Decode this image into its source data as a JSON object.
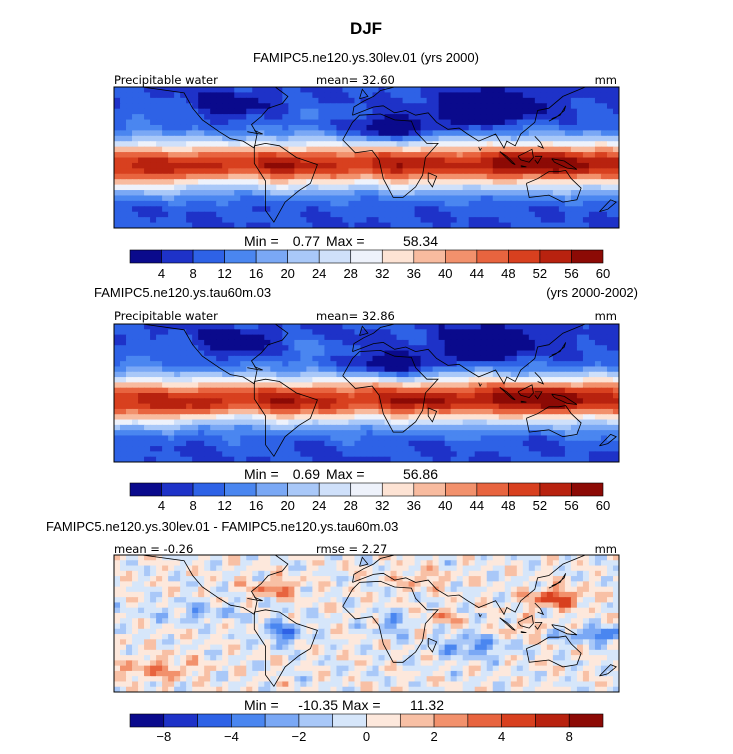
{
  "title": "DJF",
  "chart_data": [
    {
      "type": "heatmap",
      "case": "FAMIPC5.ne120.ys.30lev.01 (yrs 2000)",
      "years": "",
      "variable": "Precipitable water",
      "units": "mm",
      "mean_text": "mean=  32.60",
      "rmse_text": "",
      "min_label": "Min = ",
      "min_value": "0.77",
      "max_label": "Max = ",
      "max_value": "58.34",
      "levels": [
        "4",
        "8",
        "12",
        "16",
        "20",
        "24",
        "28",
        "32",
        "36",
        "40",
        "44",
        "48",
        "52",
        "56",
        "60"
      ],
      "colors": [
        "#0a0a8c",
        "#1e32c8",
        "#2e62e6",
        "#4a86f0",
        "#7aa8f5",
        "#a9c8f8",
        "#cfe0fa",
        "#eef2fb",
        "#fde3d4",
        "#f8bb9f",
        "#f2916c",
        "#e8643f",
        "#d8401f",
        "#b8220f",
        "#8c0a05"
      ],
      "field": "pw1"
    },
    {
      "type": "heatmap",
      "case": "FAMIPC5.ne120.ys.tau60m.03",
      "years": "(yrs 2000-2002)",
      "variable": "Precipitable water",
      "units": "mm",
      "mean_text": "mean=  32.86",
      "rmse_text": "",
      "min_label": "Min = ",
      "min_value": "0.69",
      "max_label": "Max = ",
      "max_value": "56.86",
      "levels": [
        "4",
        "8",
        "12",
        "16",
        "20",
        "24",
        "28",
        "32",
        "36",
        "40",
        "44",
        "48",
        "52",
        "56",
        "60"
      ],
      "colors": [
        "#0a0a8c",
        "#1e32c8",
        "#2e62e6",
        "#4a86f0",
        "#7aa8f5",
        "#a9c8f8",
        "#cfe0fa",
        "#eef2fb",
        "#fde3d4",
        "#f8bb9f",
        "#f2916c",
        "#e8643f",
        "#d8401f",
        "#b8220f",
        "#8c0a05"
      ],
      "field": "pw2"
    },
    {
      "type": "heatmap",
      "case": "FAMIPC5.ne120.ys.30lev.01 - FAMIPC5.ne120.ys.tau60m.03",
      "years": "",
      "variable": "",
      "units": "mm",
      "mean_text": "mean =  -0.26",
      "rmse_text": "rmse =   2.27",
      "min_label": "Min = ",
      "min_value": "-10.35",
      "max_label": "Max = ",
      "max_value": "11.32",
      "levels": [
        "−8",
        "",
        "−4",
        "",
        "−2",
        "",
        "0",
        "",
        "2",
        "",
        "4",
        "",
        "8",
        ""
      ],
      "colors": [
        "#0a0a8c",
        "#1e32c8",
        "#2e62e6",
        "#4a86f0",
        "#7aa8f5",
        "#a9c8f8",
        "#d6e6fa",
        "#fde8dc",
        "#f8c0a5",
        "#f2916c",
        "#e8643f",
        "#d8401f",
        "#b8220f",
        "#8c0a05"
      ],
      "field": "diff"
    }
  ]
}
